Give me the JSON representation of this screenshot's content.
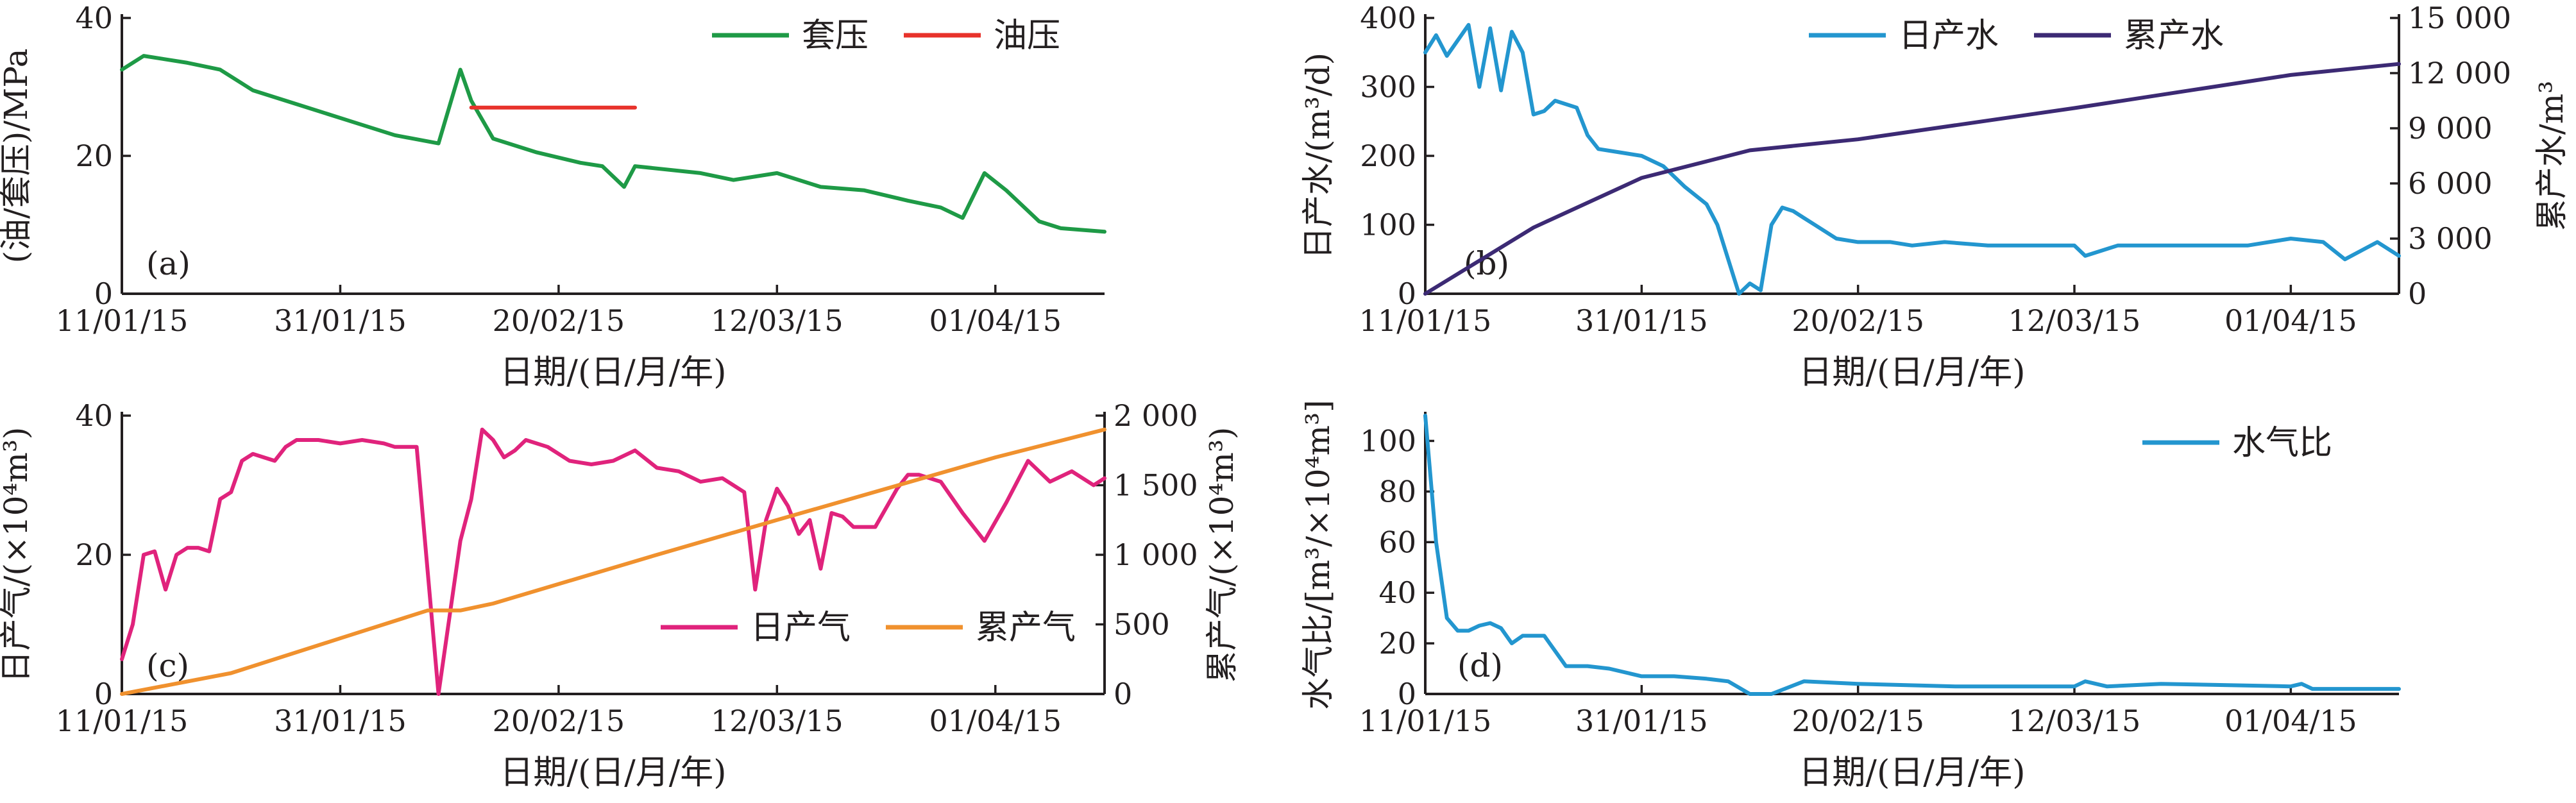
{
  "chart_data": [
    {
      "type": "line",
      "panel_label": "(a)",
      "x": [
        "2015-01-11",
        "2015-01-13",
        "2015-01-17",
        "2015-01-20",
        "2015-01-23",
        "2015-01-27",
        "2015-02-01",
        "2015-02-05",
        "2015-02-09",
        "2015-02-11",
        "2015-02-12",
        "2015-02-14",
        "2015-02-18",
        "2015-02-22",
        "2015-02-24",
        "2015-02-26",
        "2015-02-27",
        "2015-03-05",
        "2015-03-08",
        "2015-03-12",
        "2015-03-16",
        "2015-03-20",
        "2015-03-24",
        "2015-03-27",
        "2015-03-29",
        "2015-03-31",
        "2015-04-02",
        "2015-04-05",
        "2015-04-07",
        "2015-04-11"
      ],
      "series": [
        {
          "name": "套压",
          "color": "#1e9a46",
          "x": [
            "2015-01-11",
            "2015-01-13",
            "2015-01-17",
            "2015-01-20",
            "2015-01-23",
            "2015-01-27",
            "2015-02-01",
            "2015-02-05",
            "2015-02-09",
            "2015-02-11",
            "2015-02-12",
            "2015-02-14",
            "2015-02-18",
            "2015-02-22",
            "2015-02-24",
            "2015-02-26",
            "2015-02-27",
            "2015-03-05",
            "2015-03-08",
            "2015-03-12",
            "2015-03-16",
            "2015-03-20",
            "2015-03-24",
            "2015-03-27",
            "2015-03-29",
            "2015-03-31",
            "2015-04-02",
            "2015-04-05",
            "2015-04-07",
            "2015-04-11"
          ],
          "values": [
            32.5,
            34.5,
            33.5,
            32.5,
            29.5,
            27.5,
            25,
            23,
            21.8,
            32.5,
            28,
            22.5,
            20.5,
            19,
            18.5,
            15.5,
            18.5,
            17.5,
            16.5,
            17.5,
            15.5,
            15,
            13.5,
            12.5,
            11,
            17.5,
            15,
            10.5,
            9.5,
            9
          ]
        },
        {
          "name": "油压",
          "color": "#e8322b",
          "x": [
            "2015-02-12",
            "2015-02-27"
          ],
          "values": [
            27,
            27
          ]
        }
      ],
      "xlabel": "日期/(日/月/年)",
      "ylabel": "(油/套压)/MPa",
      "xticks": [
        "11/01/15",
        "31/01/15",
        "20/02/15",
        "12/03/15",
        "01/04/15"
      ],
      "yticks": [
        "0",
        "20",
        "40"
      ],
      "ylim": [
        0,
        40
      ],
      "legend": "top-right"
    },
    {
      "type": "line",
      "panel_label": "(b)",
      "series": [
        {
          "name": "日产水",
          "color": "#2396cf",
          "axis": "left",
          "x": [
            "2015-01-11",
            "2015-01-12",
            "2015-01-13",
            "2015-01-15",
            "2015-01-16",
            "2015-01-17",
            "2015-01-18",
            "2015-01-19",
            "2015-01-20",
            "2015-01-21",
            "2015-01-22",
            "2015-01-23",
            "2015-01-25",
            "2015-01-26",
            "2015-01-27",
            "2015-01-29",
            "2015-01-31",
            "2015-02-02",
            "2015-02-04",
            "2015-02-06",
            "2015-02-07",
            "2015-02-09",
            "2015-02-10",
            "2015-02-11",
            "2015-02-12",
            "2015-02-13",
            "2015-02-14",
            "2015-02-15",
            "2015-02-16",
            "2015-02-18",
            "2015-02-20",
            "2015-02-23",
            "2015-02-25",
            "2015-02-28",
            "2015-03-04",
            "2015-03-08",
            "2015-03-12",
            "2015-03-13",
            "2015-03-16",
            "2015-03-20",
            "2015-03-24",
            "2015-03-28",
            "2015-04-01",
            "2015-04-04",
            "2015-04-06",
            "2015-04-09",
            "2015-04-11"
          ],
          "values": [
            350,
            375,
            345,
            390,
            300,
            385,
            295,
            380,
            350,
            260,
            265,
            280,
            270,
            230,
            210,
            205,
            200,
            185,
            155,
            130,
            100,
            0,
            15,
            5,
            100,
            125,
            120,
            110,
            100,
            80,
            75,
            75,
            70,
            75,
            70,
            70,
            70,
            55,
            70,
            70,
            70,
            70,
            80,
            75,
            50,
            75,
            55
          ]
        },
        {
          "name": "累产水",
          "color": "#3c2a74",
          "axis": "right",
          "x": [
            "2015-01-11",
            "2015-01-21",
            "2015-01-31",
            "2015-02-10",
            "2015-02-20",
            "2015-03-12",
            "2015-04-01",
            "2015-04-11"
          ],
          "values": [
            0,
            3600,
            6300,
            7800,
            8400,
            10100,
            11900,
            12500
          ]
        }
      ],
      "xlabel": "日期/(日/月/年)",
      "ylabel": "日产水/(m³/d)",
      "y2label": "累产水/m³",
      "xticks": [
        "11/01/15",
        "31/01/15",
        "20/02/15",
        "12/03/15",
        "01/04/15"
      ],
      "yticks": [
        "0",
        "100",
        "200",
        "300",
        "400"
      ],
      "y2ticks": [
        "0",
        "3 000",
        "6 000",
        "9 000",
        "12 000",
        "15 000"
      ],
      "ylim": [
        0,
        400
      ],
      "y2lim": [
        0,
        15000
      ],
      "legend": "top-right"
    },
    {
      "type": "line",
      "panel_label": "(c)",
      "series": [
        {
          "name": "日产气",
          "color": "#e0237c",
          "axis": "left",
          "x": [
            "2015-01-11",
            "2015-01-12",
            "2015-01-13",
            "2015-01-14",
            "2015-01-15",
            "2015-01-16",
            "2015-01-17",
            "2015-01-18",
            "2015-01-19",
            "2015-01-20",
            "2015-01-21",
            "2015-01-22",
            "2015-01-23",
            "2015-01-24",
            "2015-01-25",
            "2015-01-26",
            "2015-01-27",
            "2015-01-29",
            "2015-01-31",
            "2015-02-02",
            "2015-02-04",
            "2015-02-05",
            "2015-02-07",
            "2015-02-09",
            "2015-02-11",
            "2015-02-12",
            "2015-02-13",
            "2015-02-14",
            "2015-02-15",
            "2015-02-16",
            "2015-02-17",
            "2015-02-19",
            "2015-02-21",
            "2015-02-23",
            "2015-02-25",
            "2015-02-27",
            "2015-03-01",
            "2015-03-03",
            "2015-03-05",
            "2015-03-07",
            "2015-03-09",
            "2015-03-10",
            "2015-03-11",
            "2015-03-12",
            "2015-03-13",
            "2015-03-14",
            "2015-03-15",
            "2015-03-16",
            "2015-03-17",
            "2015-03-18",
            "2015-03-19",
            "2015-03-21",
            "2015-03-23",
            "2015-03-24",
            "2015-03-25",
            "2015-03-27",
            "2015-03-29",
            "2015-03-31",
            "2015-04-02",
            "2015-04-04",
            "2015-04-06",
            "2015-04-08",
            "2015-04-10",
            "2015-04-11"
          ],
          "values": [
            5,
            10,
            20,
            20.5,
            15,
            20,
            21,
            21,
            20.5,
            28,
            29,
            33.5,
            34.5,
            34,
            33.5,
            35.5,
            36.5,
            36.5,
            36,
            36.5,
            36,
            35.5,
            35.5,
            0,
            22,
            28,
            38,
            36.5,
            34,
            35,
            36.5,
            35.5,
            33.5,
            33,
            33.5,
            35,
            32.5,
            32,
            30.5,
            31,
            29,
            15,
            25,
            29.5,
            27,
            23,
            25,
            18,
            26,
            25.5,
            24,
            24,
            29.5,
            31.5,
            31.5,
            30.5,
            26,
            22,
            27.5,
            33.5,
            30.5,
            32,
            30,
            31
          ]
        },
        {
          "name": "累产气",
          "color": "#f0912e",
          "axis": "right",
          "x": [
            "2015-01-11",
            "2015-01-21",
            "2015-01-31",
            "2015-02-08",
            "2015-02-11",
            "2015-02-14",
            "2015-03-01",
            "2015-03-12",
            "2015-04-01",
            "2015-04-11"
          ],
          "values": [
            0,
            150,
            400,
            600,
            600,
            650,
            1000,
            1250,
            1700,
            1900
          ]
        }
      ],
      "xlabel": "日期/(日/月/年)",
      "ylabel": "日产气/(×10⁴m³)",
      "y2label": "累产气/(×10⁴m³)",
      "xticks": [
        "11/01/15",
        "31/01/15",
        "20/02/15",
        "12/03/15",
        "01/04/15"
      ],
      "yticks": [
        "0",
        "20",
        "40"
      ],
      "y2ticks": [
        "0",
        "500",
        "1 000",
        "1 500",
        "2 000"
      ],
      "ylim": [
        0,
        40
      ],
      "y2lim": [
        0,
        2000
      ],
      "legend": "bottom-right"
    },
    {
      "type": "line",
      "panel_label": "(d)",
      "series": [
        {
          "name": "水气比",
          "color": "#2396cf",
          "x": [
            "2015-01-11",
            "2015-01-12",
            "2015-01-13",
            "2015-01-14",
            "2015-01-15",
            "2015-01-16",
            "2015-01-17",
            "2015-01-18",
            "2015-01-19",
            "2015-01-20",
            "2015-01-21",
            "2015-01-22",
            "2015-01-24",
            "2015-01-26",
            "2015-01-28",
            "2015-01-31",
            "2015-02-03",
            "2015-02-06",
            "2015-02-08",
            "2015-02-10",
            "2015-02-12",
            "2015-02-15",
            "2015-02-20",
            "2015-03-01",
            "2015-03-12",
            "2015-03-13",
            "2015-03-15",
            "2015-03-20",
            "2015-04-01",
            "2015-04-02",
            "2015-04-03",
            "2015-04-11"
          ],
          "values": [
            110,
            60,
            30,
            25,
            25,
            27,
            28,
            26,
            20,
            23,
            23,
            23,
            11,
            11,
            10,
            7,
            7,
            6,
            5,
            0,
            0,
            5,
            4,
            3,
            3,
            5,
            3,
            4,
            3,
            4,
            2,
            2
          ]
        }
      ],
      "xlabel": "日期/(日/月/年)",
      "ylabel": "水气比/[m³/×10⁴m³]",
      "xticks": [
        "11/01/15",
        "31/01/15",
        "20/02/15",
        "12/03/15",
        "01/04/15"
      ],
      "yticks": [
        "0",
        "20",
        "40",
        "60",
        "80",
        "100"
      ],
      "ylim": [
        0,
        110
      ],
      "legend": "top-right"
    }
  ]
}
